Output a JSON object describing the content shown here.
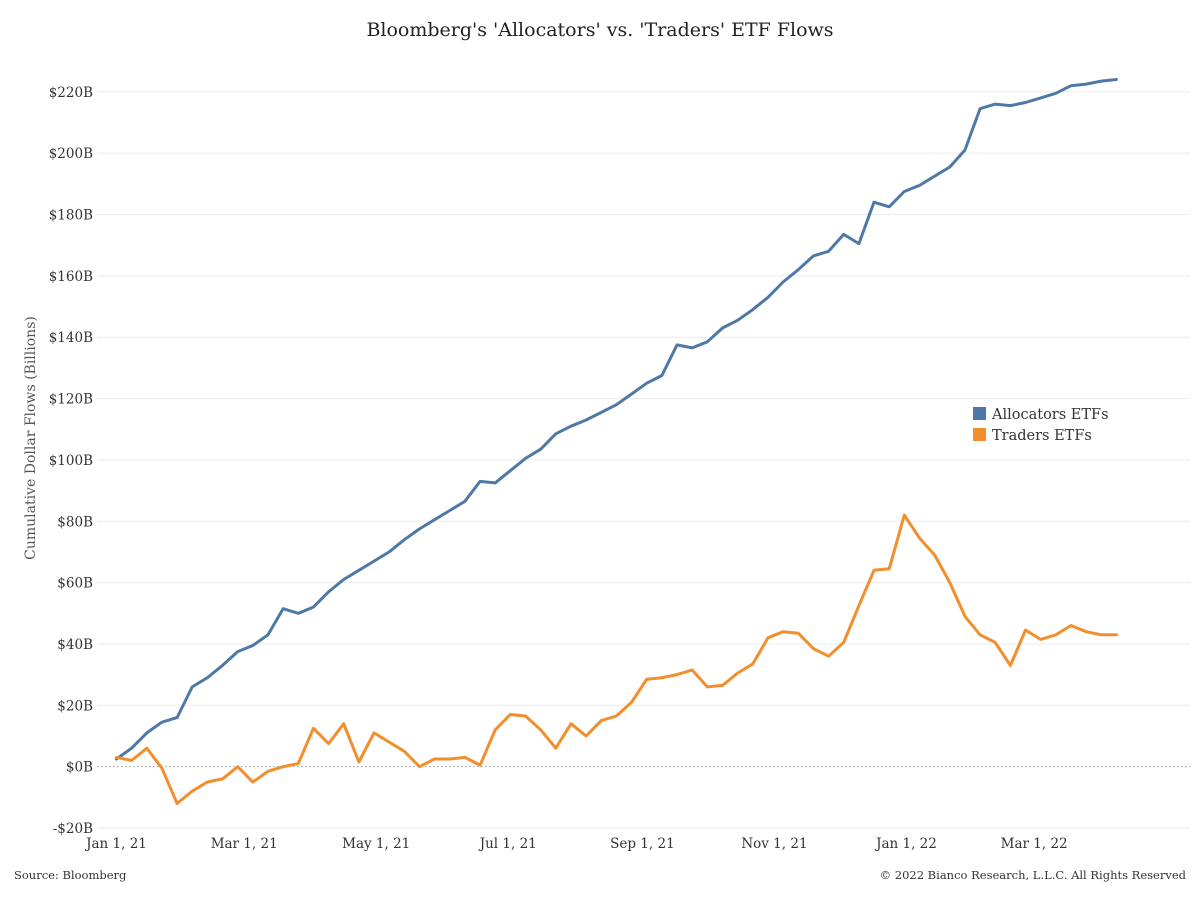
{
  "chart_data": {
    "type": "line",
    "title": "Bloomberg's 'Allocators' vs. 'Traders' ETF Flows",
    "ylabel": "Cumulative Dollar Flows (Billions)",
    "xlabel": "",
    "ylim": [
      -20,
      232
    ],
    "xlim": [
      "2020-12-23",
      "2022-05-12"
    ],
    "y_ticks": [
      -20,
      0,
      20,
      40,
      60,
      80,
      100,
      120,
      140,
      160,
      180,
      200,
      220
    ],
    "y_tick_labels": [
      "-$20B",
      "$0B",
      "$20B",
      "$40B",
      "$60B",
      "$80B",
      "$100B",
      "$120B",
      "$140B",
      "$160B",
      "$180B",
      "$200B",
      "$220B"
    ],
    "x_ticks": [
      "2021-01-01",
      "2021-03-01",
      "2021-05-01",
      "2021-07-01",
      "2021-09-01",
      "2021-11-01",
      "2022-01-01",
      "2022-03-01"
    ],
    "x_tick_labels": [
      "Jan 1, 21",
      "Mar 1, 21",
      "May 1, 21",
      "Jul 1, 21",
      "Sep 1, 21",
      "Nov 1, 21",
      "Jan 1, 22",
      "Mar 1, 22"
    ],
    "grid": true,
    "zero_line": "dotted",
    "legend_position": "right",
    "x": [
      "2021-01-01",
      "2021-01-08",
      "2021-01-15",
      "2021-01-22",
      "2021-01-29",
      "2021-02-05",
      "2021-02-12",
      "2021-02-19",
      "2021-02-26",
      "2021-03-05",
      "2021-03-12",
      "2021-03-19",
      "2021-03-26",
      "2021-04-02",
      "2021-04-09",
      "2021-04-16",
      "2021-04-23",
      "2021-04-30",
      "2021-05-07",
      "2021-05-14",
      "2021-05-21",
      "2021-05-28",
      "2021-06-04",
      "2021-06-11",
      "2021-06-18",
      "2021-06-25",
      "2021-07-02",
      "2021-07-09",
      "2021-07-16",
      "2021-07-23",
      "2021-07-30",
      "2021-08-06",
      "2021-08-13",
      "2021-08-20",
      "2021-08-27",
      "2021-09-03",
      "2021-09-10",
      "2021-09-17",
      "2021-09-24",
      "2021-10-01",
      "2021-10-08",
      "2021-10-15",
      "2021-10-22",
      "2021-10-29",
      "2021-11-05",
      "2021-11-12",
      "2021-11-19",
      "2021-11-26",
      "2021-12-03",
      "2021-12-10",
      "2021-12-17",
      "2021-12-24",
      "2021-12-31",
      "2022-01-07",
      "2022-01-14",
      "2022-01-21",
      "2022-01-28",
      "2022-02-04",
      "2022-02-11",
      "2022-02-18",
      "2022-02-25",
      "2022-03-04",
      "2022-03-11",
      "2022-03-18",
      "2022-03-25",
      "2022-04-01",
      "2022-04-08"
    ],
    "series": [
      {
        "name": "Allocators ETFs",
        "color": "#4e79a7",
        "values": [
          2.5,
          6,
          11,
          14.5,
          16,
          26,
          29,
          33,
          37.5,
          39.5,
          43,
          51.5,
          50,
          52,
          57,
          61,
          64,
          67,
          70,
          74,
          77.5,
          80.5,
          83.5,
          86.5,
          93,
          92.5,
          96.5,
          100.5,
          103.5,
          108.5,
          111,
          113,
          115.5,
          118,
          121.5,
          125,
          127.5,
          137.5,
          136.5,
          138.5,
          143,
          145.5,
          149,
          153,
          158,
          162,
          166.5,
          168,
          173.5,
          170.5,
          184,
          182.5,
          187.5,
          189.5,
          192.5,
          195.5,
          201,
          214.5,
          216,
          215.5,
          216.5,
          218,
          219.5,
          222,
          222.5,
          223.5,
          224
        ]
      },
      {
        "name": "Traders ETFs",
        "color": "#f28e2b",
        "values": [
          3,
          2,
          6,
          -0.5,
          -12,
          -8,
          -5,
          -4,
          0,
          -5,
          -1.5,
          0,
          1,
          12.5,
          7.5,
          14,
          1.5,
          11,
          8,
          5,
          0,
          2.5,
          2.5,
          3,
          0.5,
          12,
          17,
          16.5,
          12,
          6,
          14,
          10,
          15,
          16.5,
          21,
          28.5,
          29,
          30,
          31.5,
          26,
          26.5,
          30.5,
          33.5,
          42,
          44,
          43.5,
          38.5,
          36,
          40.5,
          52.5,
          64,
          64.5,
          82,
          74.5,
          69,
          60,
          49,
          43,
          40.5,
          33,
          44.5,
          41.5,
          43,
          46,
          44,
          43,
          43
        ]
      }
    ]
  },
  "footer": {
    "source": "Source: Bloomberg",
    "copyright": "© 2022 Bianco Research, L.L.C. All Rights Reserved"
  }
}
